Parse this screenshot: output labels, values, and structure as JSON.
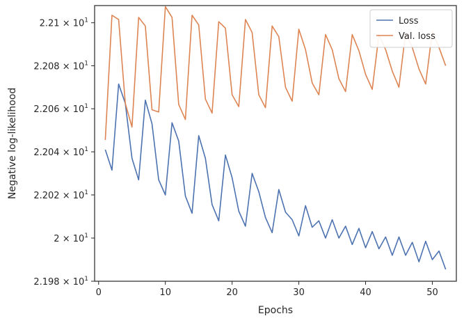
{
  "chart_data": {
    "type": "line",
    "title": "",
    "xlabel": "Epochs",
    "ylabel": "Negative log-likelihood",
    "xlim": [
      -0.6,
      53.6
    ],
    "ylim": [
      21.98,
      22.108
    ],
    "y_scale": "log",
    "x_ticks": [
      0,
      10,
      20,
      30,
      40,
      50
    ],
    "x_tick_labels": [
      "0",
      "10",
      "20",
      "30",
      "40",
      "50"
    ],
    "y_ticks": [
      21.98,
      22.0,
      22.02,
      22.04,
      22.06,
      22.08,
      22.1
    ],
    "y_tick_labels": [
      {
        "mant": "2.198",
        "exp": "1"
      },
      {
        "mant": "2",
        "exp": "1"
      },
      {
        "mant": "2.202",
        "exp": "1"
      },
      {
        "mant": "2.204",
        "exp": "1"
      },
      {
        "mant": "2.206",
        "exp": "1"
      },
      {
        "mant": "2.208",
        "exp": "1"
      },
      {
        "mant": "2.21",
        "exp": "1"
      }
    ],
    "grid": false,
    "legend_position": "top-right",
    "x": [
      1,
      2,
      3,
      4,
      5,
      6,
      7,
      8,
      9,
      10,
      11,
      12,
      13,
      14,
      15,
      16,
      17,
      18,
      19,
      20,
      21,
      22,
      23,
      24,
      25,
      26,
      27,
      28,
      29,
      30,
      31,
      32,
      33,
      34,
      35,
      36,
      37,
      38,
      39,
      40,
      41,
      42,
      43,
      44,
      45,
      46,
      47,
      48,
      49,
      50,
      51,
      52
    ],
    "series": [
      {
        "name": "Loss",
        "color": "#4c72b0",
        "values": [
          22.041,
          22.0315,
          22.0715,
          22.0625,
          22.037,
          22.027,
          22.064,
          22.053,
          22.027,
          22.02,
          22.0535,
          22.045,
          22.0195,
          22.0115,
          22.0475,
          22.037,
          22.0155,
          22.008,
          22.0385,
          22.028,
          22.0125,
          22.0055,
          22.03,
          22.0215,
          22.0095,
          22.0025,
          22.0225,
          22.012,
          22.0085,
          22.001,
          22.015,
          22.005,
          22.008,
          22.0,
          22.0085,
          22.0,
          22.0055,
          21.997,
          22.0045,
          21.9955,
          22.003,
          21.995,
          22.0005,
          21.992,
          22.0005,
          21.992,
          21.998,
          21.989,
          21.9985,
          21.99,
          21.994,
          21.9855
        ]
      },
      {
        "name": "Val. loss",
        "color": "#dd8452",
        "values": [
          22.0455,
          22.1035,
          22.1015,
          22.0625,
          22.0515,
          22.1025,
          22.0985,
          22.0595,
          22.0585,
          22.1075,
          22.1025,
          22.062,
          22.055,
          22.1035,
          22.099,
          22.0645,
          22.058,
          22.1005,
          22.0975,
          22.0665,
          22.061,
          22.1015,
          22.0955,
          22.0665,
          22.0605,
          22.0985,
          22.0935,
          22.07,
          22.0635,
          22.097,
          22.0875,
          22.072,
          22.0665,
          22.0945,
          22.0875,
          22.074,
          22.068,
          22.0945,
          22.087,
          22.076,
          22.069,
          22.0945,
          22.0875,
          22.0775,
          22.07,
          22.0955,
          22.0885,
          22.0785,
          22.0715,
          22.096,
          22.0885,
          22.08
        ]
      }
    ]
  }
}
